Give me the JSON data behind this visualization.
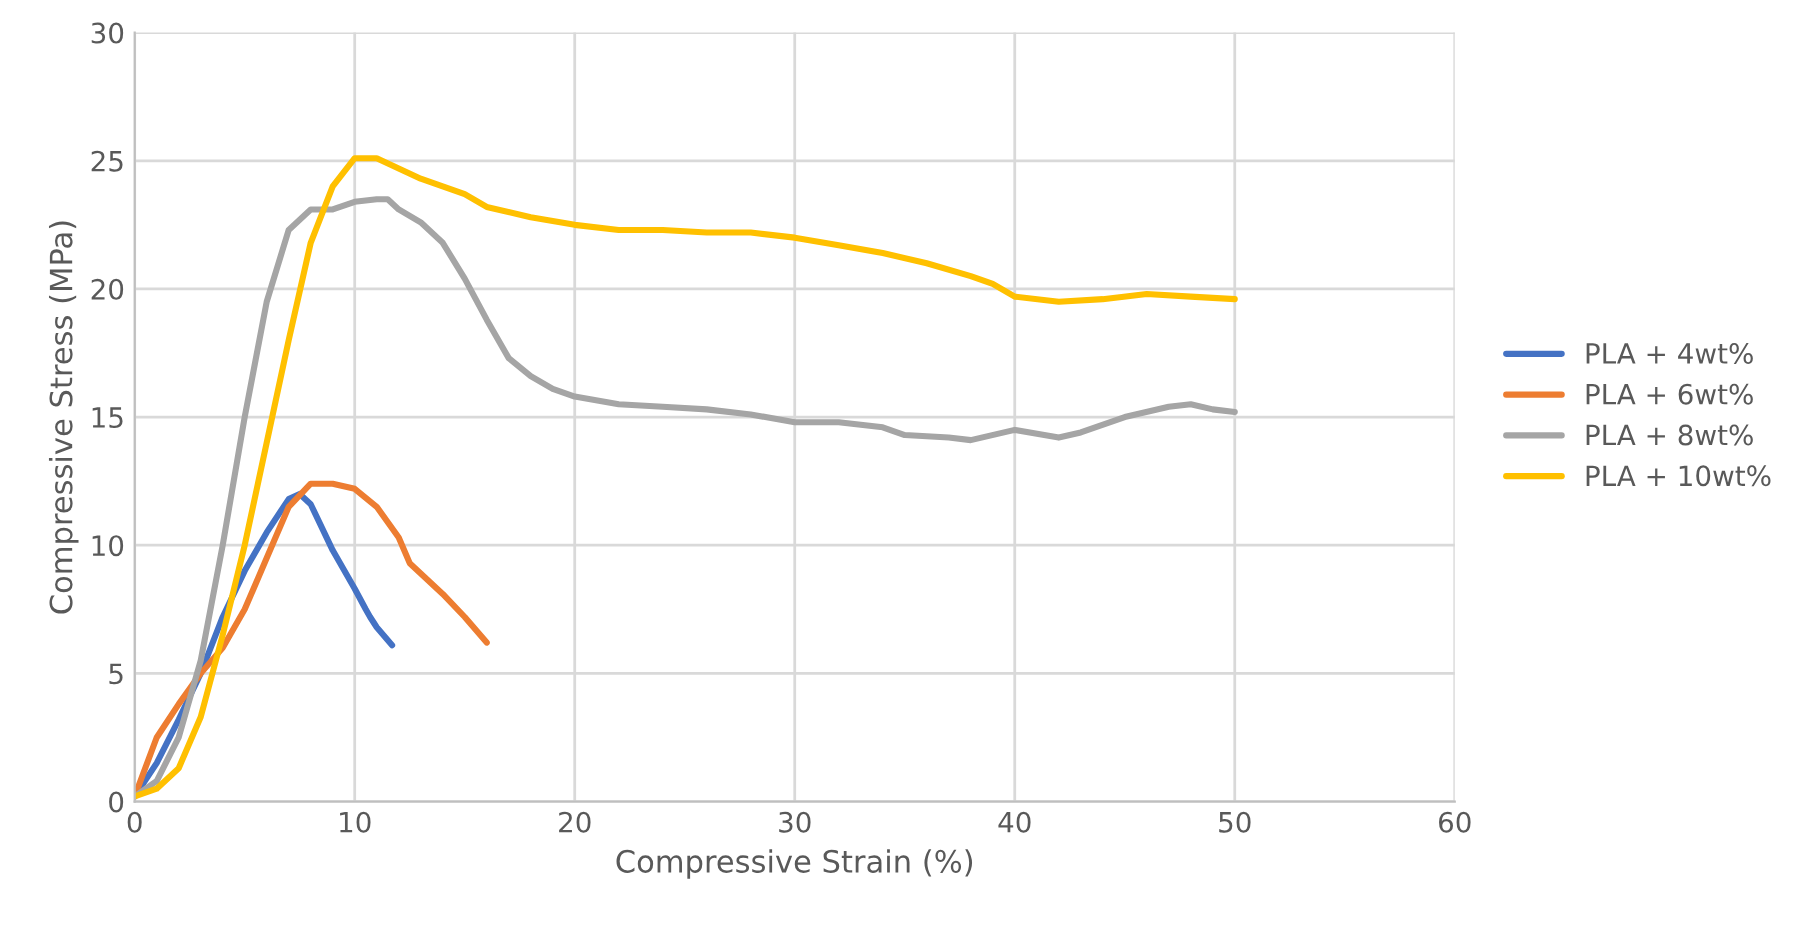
{
  "chart_data": {
    "type": "line",
    "xlabel": "Compressive Strain (%)",
    "ylabel": "Compressive Stress (MPa)",
    "xlim": [
      0,
      60
    ],
    "xticks": [
      0,
      10,
      20,
      30,
      40,
      50,
      60
    ],
    "ylim": [
      0,
      30
    ],
    "yticks": [
      0,
      5,
      10,
      15,
      20,
      25,
      30
    ],
    "grid": true,
    "legend": "right",
    "marker": "none",
    "line_style": "solid",
    "series": [
      {
        "name": "PLA + 4wt%",
        "color": "#4472c4",
        "x": [
          0,
          1,
          2,
          3,
          4,
          5,
          6,
          7,
          7.5,
          8,
          9,
          10,
          10.5,
          10.7,
          11,
          11.7
        ],
        "values": [
          0.2,
          1.5,
          3.2,
          5,
          7.2,
          9,
          10.5,
          11.8,
          12,
          11.6,
          9.8,
          8.3,
          7.5,
          7.2,
          6.8,
          6.1
        ]
      },
      {
        "name": "PLA + 6wt%",
        "color": "#ed7d31",
        "x": [
          0,
          1,
          2,
          3,
          4,
          5,
          6,
          7,
          8,
          9,
          10,
          11,
          12,
          12.5,
          13,
          14,
          15,
          16
        ],
        "values": [
          0.2,
          2.5,
          3.8,
          5,
          6,
          7.5,
          9.5,
          11.5,
          12.4,
          12.4,
          12.2,
          11.5,
          10.3,
          9.3,
          8.9,
          8.1,
          7.2,
          6.2
        ]
      },
      {
        "name": "PLA + 8wt%",
        "color": "#a5a5a5",
        "x": [
          0,
          1,
          2,
          3,
          4,
          5,
          6,
          7,
          8,
          9,
          10,
          11,
          11.5,
          12,
          13,
          14,
          15,
          16,
          17,
          18,
          19,
          20,
          22,
          24,
          26,
          28,
          30,
          32,
          34,
          35,
          37,
          38,
          40,
          42,
          43,
          45,
          47,
          48,
          49,
          50
        ],
        "values": [
          0.2,
          0.8,
          2.5,
          5.5,
          10,
          15,
          19.5,
          22.3,
          23.1,
          23.1,
          23.4,
          23.5,
          23.5,
          23.1,
          22.6,
          21.8,
          20.4,
          18.8,
          17.3,
          16.6,
          16.1,
          15.8,
          15.5,
          15.4,
          15.3,
          15.1,
          14.8,
          14.8,
          14.6,
          14.3,
          14.2,
          14.1,
          14.5,
          14.2,
          14.4,
          15,
          15.4,
          15.5,
          15.3,
          15.2
        ]
      },
      {
        "name": "PLA + 10wt%",
        "color": "#ffc000",
        "x": [
          0,
          1,
          2,
          3,
          4,
          5,
          6,
          7,
          8,
          9,
          10,
          11,
          12,
          13,
          14,
          15,
          16,
          18,
          20,
          22,
          24,
          26,
          28,
          30,
          32,
          34,
          36,
          38,
          39,
          40,
          42,
          44,
          46,
          48,
          50
        ],
        "values": [
          0.2,
          0.5,
          1.3,
          3.3,
          6.5,
          10,
          14,
          18,
          21.8,
          24,
          25.1,
          25.1,
          24.7,
          24.3,
          24,
          23.7,
          23.2,
          22.8,
          22.5,
          22.3,
          22.3,
          22.2,
          22.2,
          22,
          21.7,
          21.4,
          21,
          20.5,
          20.2,
          19.7,
          19.5,
          19.6,
          19.8,
          19.7,
          19.6
        ]
      }
    ]
  }
}
